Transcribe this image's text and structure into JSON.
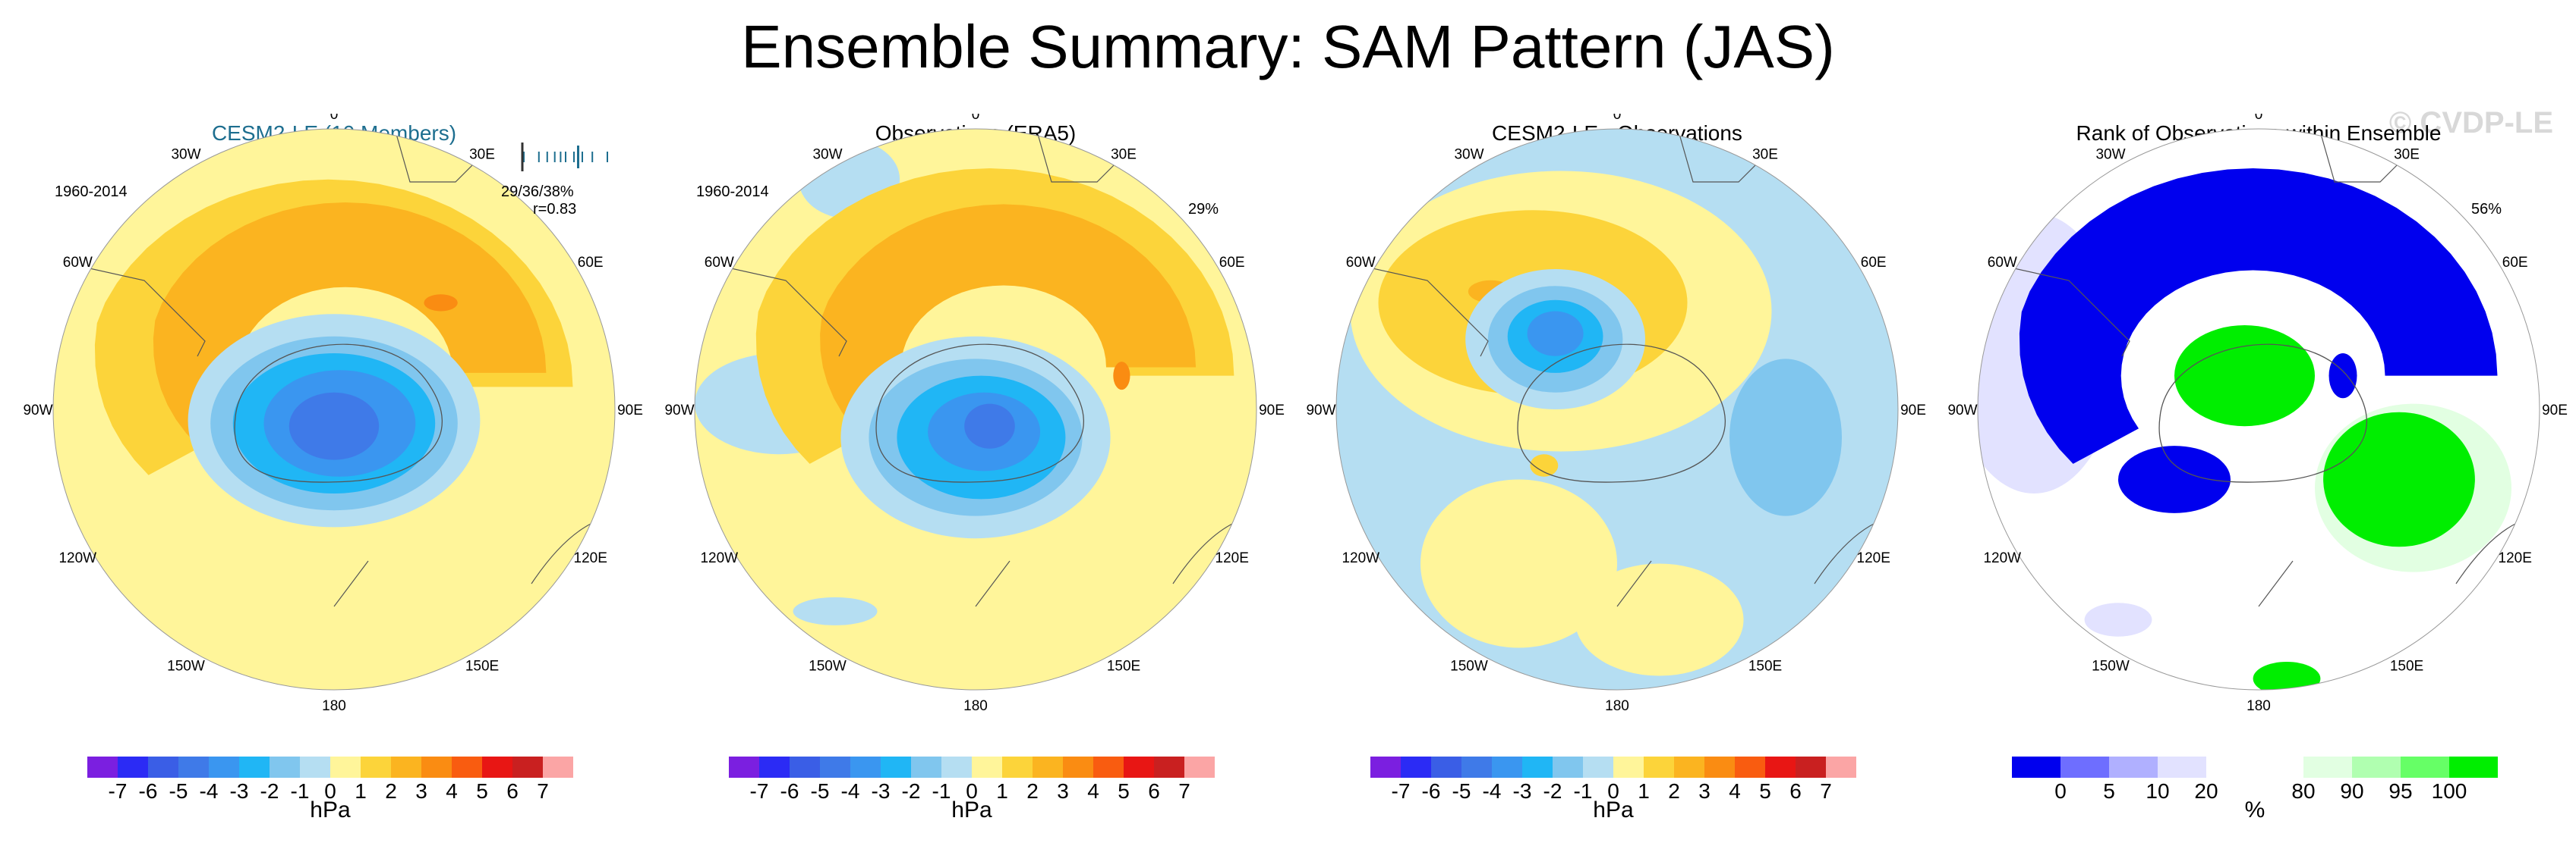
{
  "title": "Ensemble Summary: SAM Pattern (JAS)",
  "watermark": "© CVDP-LE",
  "longitude_labels": [
    "0",
    "30E",
    "60E",
    "90E",
    "120E",
    "150E",
    "180",
    "150W",
    "120W",
    "90W",
    "60W",
    "30W"
  ],
  "colors": {
    "hpa": [
      "#7b1fe0",
      "#2b2bf5",
      "#3a5ee6",
      "#3f7ae8",
      "#3a96f0",
      "#20b6f5",
      "#80c6ee",
      "#b5def2",
      "#fff59a",
      "#fcd43a",
      "#fbb420",
      "#fa8c12",
      "#f95c10",
      "#e81614",
      "#c92020",
      "#fba5a5"
    ],
    "rank": [
      "#0000ee",
      "#6e6eff",
      "#b0b0ff",
      "#e2e2ff",
      "#ffffff",
      "#ffffff",
      "#e2ffe2",
      "#b0ffb0",
      "#66ff66",
      "#00ee00"
    ],
    "land_outline": "#555555",
    "panel1_title": "#1d6e8f"
  },
  "panels": [
    {
      "title": "CESM2-LE (10 Members)",
      "period": "1960-2014",
      "stats_line1": "29/36/38%",
      "stats_line2": "r=0.83",
      "range_ticks": [
        0.0,
        0.18,
        0.28,
        0.37,
        0.44,
        0.5,
        0.6,
        0.7,
        0.82,
        1.0
      ],
      "range_obs_tick": 0.65,
      "fields": [
        {
          "level": 8,
          "shape": "disk"
        },
        {
          "level": 9,
          "shape": "horseshoe",
          "mag": 1.0,
          "center": [
            -0.02,
            0.08
          ]
        },
        {
          "level": 10,
          "shape": "horseshoe",
          "mag": 0.75,
          "center": [
            0.04,
            0.13
          ]
        },
        {
          "level": 11,
          "shape": "blob",
          "center": [
            0.38,
            0.38
          ],
          "rx": 0.06,
          "ry": 0.03
        },
        {
          "level": 7,
          "shape": "ellipse",
          "center": [
            0.0,
            -0.04
          ],
          "rx": 0.52,
          "ry": 0.38
        },
        {
          "level": 6,
          "shape": "ellipse",
          "center": [
            0.0,
            -0.05
          ],
          "rx": 0.44,
          "ry": 0.31
        },
        {
          "level": 5,
          "shape": "ellipse",
          "center": [
            0.0,
            -0.05
          ],
          "rx": 0.36,
          "ry": 0.25
        },
        {
          "level": 4,
          "shape": "ellipse",
          "center": [
            0.02,
            -0.05
          ],
          "rx": 0.27,
          "ry": 0.19
        },
        {
          "level": 3,
          "shape": "ellipse",
          "center": [
            0.0,
            -0.06
          ],
          "rx": 0.16,
          "ry": 0.12
        }
      ]
    },
    {
      "title": "Observations (ERA5)",
      "period": "1960-2014",
      "stats_line1": "29%",
      "fields": [
        {
          "level": 8,
          "shape": "disk"
        },
        {
          "level": 7,
          "shape": "ellipse",
          "center": [
            -0.7,
            0.02
          ],
          "rx": 0.3,
          "ry": 0.18
        },
        {
          "level": 7,
          "shape": "ellipse",
          "center": [
            -0.45,
            0.82
          ],
          "rx": 0.18,
          "ry": 0.14
        },
        {
          "level": 7,
          "shape": "ellipse",
          "center": [
            -0.5,
            -0.72
          ],
          "rx": 0.15,
          "ry": 0.05
        },
        {
          "level": 9,
          "shape": "horseshoe",
          "mag": 1.0,
          "center": [
            0.05,
            0.12
          ]
        },
        {
          "level": 10,
          "shape": "horseshoe",
          "mag": 0.7,
          "center": [
            0.1,
            0.15
          ]
        },
        {
          "level": 11,
          "shape": "blob",
          "center": [
            0.52,
            0.12
          ],
          "rx": 0.03,
          "ry": 0.05
        },
        {
          "level": 7,
          "shape": "ellipse",
          "center": [
            0.0,
            -0.1
          ],
          "rx": 0.48,
          "ry": 0.36
        },
        {
          "level": 6,
          "shape": "ellipse",
          "center": [
            0.0,
            -0.1
          ],
          "rx": 0.38,
          "ry": 0.28
        },
        {
          "level": 5,
          "shape": "ellipse",
          "center": [
            0.02,
            -0.1
          ],
          "rx": 0.3,
          "ry": 0.22
        },
        {
          "level": 4,
          "shape": "ellipse",
          "center": [
            0.03,
            -0.08
          ],
          "rx": 0.2,
          "ry": 0.14
        },
        {
          "level": 3,
          "shape": "ellipse",
          "center": [
            0.05,
            -0.06
          ],
          "rx": 0.09,
          "ry": 0.08
        }
      ]
    },
    {
      "title": "CESM2-LE - Observations",
      "fields": [
        {
          "level": 7,
          "shape": "disk"
        },
        {
          "level": 8,
          "shape": "ellipse",
          "center": [
            -0.2,
            0.35
          ],
          "rx": 0.75,
          "ry": 0.5
        },
        {
          "level": 8,
          "shape": "ellipse",
          "center": [
            -0.35,
            -0.55
          ],
          "rx": 0.35,
          "ry": 0.3
        },
        {
          "level": 8,
          "shape": "ellipse",
          "center": [
            0.15,
            -0.75
          ],
          "rx": 0.3,
          "ry": 0.2
        },
        {
          "level": 9,
          "shape": "ellipse",
          "center": [
            -0.3,
            0.38
          ],
          "rx": 0.55,
          "ry": 0.33
        },
        {
          "level": 10,
          "shape": "ellipse",
          "center": [
            -0.45,
            0.42
          ],
          "rx": 0.08,
          "ry": 0.04
        },
        {
          "level": 9,
          "shape": "blob",
          "center": [
            -0.26,
            -0.2
          ],
          "rx": 0.05,
          "ry": 0.04
        },
        {
          "level": 6,
          "shape": "ellipse",
          "center": [
            0.6,
            -0.1
          ],
          "rx": 0.2,
          "ry": 0.28
        },
        {
          "level": 7,
          "shape": "ellipse",
          "center": [
            -0.22,
            0.25
          ],
          "rx": 0.32,
          "ry": 0.25
        },
        {
          "level": 6,
          "shape": "ellipse",
          "center": [
            -0.22,
            0.25
          ],
          "rx": 0.24,
          "ry": 0.19
        },
        {
          "level": 5,
          "shape": "ellipse",
          "center": [
            -0.22,
            0.26
          ],
          "rx": 0.17,
          "ry": 0.13
        },
        {
          "level": 4,
          "shape": "ellipse",
          "center": [
            -0.22,
            0.27
          ],
          "rx": 0.1,
          "ry": 0.08
        }
      ]
    },
    {
      "title": "Rank of Observations within Ensemble",
      "stats_line1": "56%",
      "fields": [
        {
          "level": 4,
          "shape": "disk"
        },
        {
          "level": 3,
          "shape": "ellipse",
          "center": [
            -0.8,
            0.2
          ],
          "rx": 0.3,
          "ry": 0.5
        },
        {
          "level": 0,
          "shape": "horseshoe",
          "mag": 1.0,
          "center": [
            -0.02,
            0.12
          ]
        },
        {
          "level": 6,
          "shape": "ellipse",
          "center": [
            0.55,
            -0.28
          ],
          "rx": 0.35,
          "ry": 0.3
        },
        {
          "level": 9,
          "shape": "ellipse",
          "center": [
            0.5,
            -0.25
          ],
          "rx": 0.27,
          "ry": 0.24
        },
        {
          "level": 9,
          "shape": "ellipse",
          "center": [
            -0.05,
            0.12
          ],
          "rx": 0.25,
          "ry": 0.18
        },
        {
          "level": 9,
          "shape": "ellipse",
          "center": [
            0.1,
            -0.96
          ],
          "rx": 0.12,
          "ry": 0.06
        },
        {
          "level": 3,
          "shape": "ellipse",
          "center": [
            -0.5,
            -0.75
          ],
          "rx": 0.12,
          "ry": 0.06
        },
        {
          "level": 0,
          "shape": "blob",
          "center": [
            0.3,
            0.12
          ],
          "rx": 0.05,
          "ry": 0.08
        },
        {
          "level": 0,
          "shape": "ellipse",
          "center": [
            -0.3,
            -0.25
          ],
          "rx": 0.2,
          "ry": 0.12
        }
      ]
    }
  ],
  "colorbar_hpa": {
    "labels": [
      "-7",
      "-6",
      "-5",
      "-4",
      "-3",
      "-2",
      "-1",
      "0",
      "1",
      "2",
      "3",
      "4",
      "5",
      "6",
      "7"
    ],
    "unit": "hPa"
  },
  "colorbar_rank": {
    "labels": [
      "0",
      "5",
      "10",
      "20",
      "80",
      "90",
      "95",
      "100"
    ],
    "label_positions": [
      1,
      2,
      3,
      4,
      6,
      7,
      8,
      9
    ],
    "unit": "%"
  }
}
